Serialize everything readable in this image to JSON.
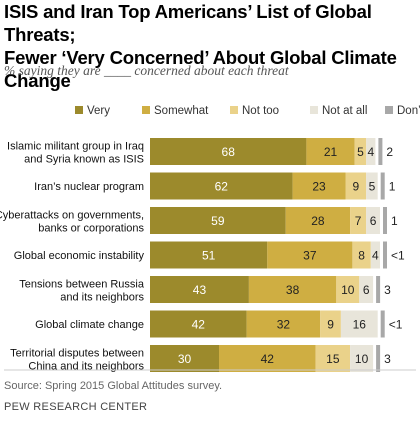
{
  "title_line1": "ISIS and Iran Top Americans’ List of Global Threats;",
  "title_line2": "Fewer ‘Very Concerned’ About Global Climate Change",
  "subtitle": "% saying they are ____ concerned about each threat",
  "source": "Source: Spring 2015 Global Attitudes survey.",
  "org": "PEW RESEARCH CENTER",
  "colors": {
    "very": "#9c8a2c",
    "somewhat": "#cfae42",
    "not_too": "#ead28a",
    "not_at_all": "#e8e5da",
    "dont_know": "#a8a8a8"
  },
  "chart_data": {
    "type": "bar",
    "orientation": "horizontal",
    "stacked": true,
    "legend_position": "top",
    "categories": [
      [
        "Islamic militant group in Iraq",
        "and Syria known as ISIS"
      ],
      [
        "Iran’s nuclear program"
      ],
      [
        "Cyberattacks on governments,",
        "banks or corporations"
      ],
      [
        "Global economic instability"
      ],
      [
        "Tensions between Russia",
        "and its neighbors"
      ],
      [
        "Global climate change"
      ],
      [
        "Territorial disputes between",
        "China and its neighbors"
      ]
    ],
    "series": [
      {
        "name": "Very",
        "values": [
          68,
          62,
          59,
          51,
          43,
          42,
          30
        ],
        "labels": [
          "68",
          "62",
          "59",
          "51",
          "43",
          "42",
          "30"
        ]
      },
      {
        "name": "Somewhat",
        "values": [
          21,
          23,
          28,
          37,
          38,
          32,
          42
        ],
        "labels": [
          "21",
          "23",
          "28",
          "37",
          "38",
          "32",
          "42"
        ]
      },
      {
        "name": "Not too",
        "values": [
          5,
          9,
          7,
          8,
          10,
          9,
          15
        ],
        "labels": [
          "5",
          "9",
          "7",
          "8",
          "10",
          "9",
          "15"
        ]
      },
      {
        "name": "Not at all",
        "values": [
          4,
          5,
          6,
          4,
          6,
          16,
          10
        ],
        "labels": [
          "4",
          "5",
          "6",
          "4",
          "6",
          "16",
          "10"
        ]
      },
      {
        "name": "Don’t know",
        "values": [
          2,
          1,
          1,
          0.5,
          3,
          0.5,
          3
        ],
        "labels": [
          "2",
          "1",
          "1",
          "<1",
          "3",
          "<1",
          "3"
        ]
      }
    ],
    "xlim": [
      0,
      100
    ]
  }
}
